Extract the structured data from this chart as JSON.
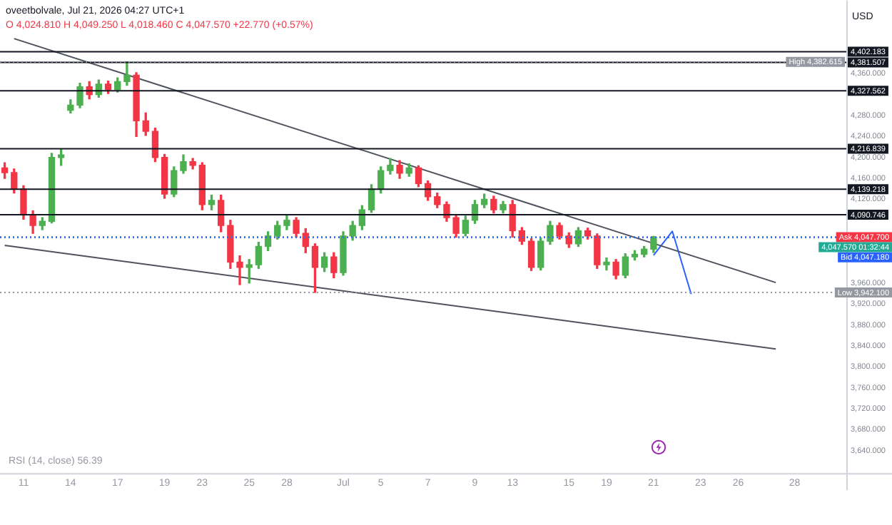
{
  "chart_data": {
    "type": "candlestick",
    "ylabel": "USD",
    "annotations": [
      "oveetbolvale, Jul 21, 2026 04:27 UTC+1",
      "O 4,024.810 H 4,049.250 L 4,018.460 C 4,047.570 +22.770 (+0.57%)",
      "RSI (14, close) 56.39"
    ],
    "categories": [
      null,
      null,
      "11",
      null,
      null,
      null,
      null,
      "14",
      null,
      null,
      null,
      null,
      "17",
      null,
      null,
      null,
      null,
      "19",
      null,
      null,
      null,
      "23",
      null,
      null,
      null,
      null,
      "25",
      null,
      null,
      null,
      "28",
      null,
      null,
      null,
      null,
      null,
      "Jul",
      null,
      null,
      null,
      "5",
      null,
      null,
      null,
      null,
      "7",
      null,
      null,
      null,
      null,
      "9",
      null,
      null,
      null,
      "13",
      null,
      null,
      null,
      null,
      null,
      "15",
      null,
      null,
      null,
      "19",
      null,
      null,
      null,
      null,
      "21",
      null,
      null,
      null,
      null,
      "23",
      null,
      null,
      null,
      "26",
      null,
      null,
      null,
      null,
      null,
      "28",
      null,
      null,
      null,
      null,
      null
    ],
    "ohlc": [
      [
        4180,
        4190,
        4160,
        4171
      ],
      [
        4171,
        4178,
        4132,
        4140
      ],
      [
        4140,
        4146,
        4082,
        4090
      ],
      [
        4090,
        4098,
        4055,
        4070
      ],
      [
        4070,
        4085,
        4062,
        4078
      ],
      [
        4078,
        4208,
        4075,
        4200
      ],
      [
        4200,
        4215,
        4185,
        4205
      ],
      [
        4290,
        4310,
        4285,
        4300
      ],
      [
        4300,
        4342,
        4295,
        4335
      ],
      [
        4335,
        4345,
        4312,
        4320
      ],
      [
        4320,
        4348,
        4315,
        4340
      ],
      [
        4340,
        4346,
        4322,
        4330
      ],
      [
        4330,
        4352,
        4325,
        4345
      ],
      [
        4345,
        4382.615,
        4338,
        4357
      ],
      [
        4357,
        4362,
        4240,
        4270
      ],
      [
        4270,
        4285,
        4242,
        4250
      ],
      [
        4250,
        4256,
        4192,
        4200
      ],
      [
        4200,
        4206,
        4122,
        4130
      ],
      [
        4130,
        4182,
        4125,
        4175
      ],
      [
        4175,
        4205,
        4170,
        4192
      ],
      [
        4192,
        4198,
        4178,
        4185
      ],
      [
        4185,
        4190,
        4100,
        4110
      ],
      [
        4110,
        4128,
        4100,
        4118
      ],
      [
        4118,
        4128,
        4058,
        4070
      ],
      [
        4070,
        4080,
        3988,
        4000
      ],
      [
        4000,
        4012,
        3957,
        3990
      ],
      [
        3990,
        4005,
        3960,
        3995
      ],
      [
        3995,
        4038,
        3988,
        4030
      ],
      [
        4030,
        4058,
        4022,
        4050
      ],
      [
        4050,
        4078,
        4044,
        4070
      ],
      [
        4070,
        4090,
        4062,
        4080
      ],
      [
        4080,
        4085,
        4048,
        4055
      ],
      [
        4055,
        4064,
        4018,
        4030
      ],
      [
        4030,
        4035,
        3942.1,
        3990
      ],
      [
        3990,
        4018,
        3982,
        4010
      ],
      [
        4010,
        4018,
        3970,
        3980
      ],
      [
        3980,
        4058,
        3975,
        4050
      ],
      [
        4050,
        4078,
        4042,
        4070
      ],
      [
        4070,
        4108,
        4062,
        4100
      ],
      [
        4100,
        4148,
        4095,
        4140
      ],
      [
        4140,
        4182,
        4132,
        4175
      ],
      [
        4175,
        4198,
        4168,
        4185
      ],
      [
        4185,
        4194,
        4160,
        4170
      ],
      [
        4170,
        4188,
        4164,
        4180
      ],
      [
        4180,
        4184,
        4144,
        4150
      ],
      [
        4150,
        4155,
        4118,
        4125
      ],
      [
        4125,
        4132,
        4104,
        4110
      ],
      [
        4110,
        4115,
        4078,
        4085
      ],
      [
        4085,
        4090,
        4048,
        4055
      ],
      [
        4055,
        4088,
        4050,
        4080
      ],
      [
        4080,
        4118,
        4074,
        4110
      ],
      [
        4110,
        4130,
        4104,
        4120
      ],
      [
        4120,
        4126,
        4094,
        4100
      ],
      [
        4100,
        4116,
        4094,
        4110
      ],
      [
        4110,
        4118,
        4048,
        4060
      ],
      [
        4060,
        4066,
        4034,
        4040
      ],
      [
        4040,
        4045,
        3984,
        3990
      ],
      [
        3990,
        4046,
        3985,
        4040
      ],
      [
        4040,
        4078,
        4034,
        4070
      ],
      [
        4070,
        4075,
        4044,
        4050
      ],
      [
        4050,
        4056,
        4028,
        4035
      ],
      [
        4035,
        4066,
        4030,
        4060
      ],
      [
        4060,
        4065,
        4044,
        4050
      ],
      [
        4050,
        4054,
        3988,
        3995
      ],
      [
        3995,
        4008,
        3985,
        4000
      ],
      [
        4000,
        4005,
        3968,
        3975
      ],
      [
        3975,
        4016,
        3970,
        4010
      ],
      [
        4010,
        4022,
        4004,
        4015
      ],
      [
        4015,
        4030,
        4010,
        4024.81
      ],
      [
        4024.81,
        4049.25,
        4018.46,
        4047.57
      ],
      null,
      null,
      null,
      null,
      null,
      null,
      null,
      null,
      null,
      null,
      null,
      null,
      null,
      null,
      null,
      null,
      null,
      null,
      null,
      null
    ],
    "colors": [
      "#f23645",
      "#f23645",
      "#f23645",
      "#f23645",
      "#4caf50",
      "#4caf50",
      "#4caf50",
      "#4caf50",
      "#4caf50",
      "#f23645",
      "#4caf50",
      "#f23645",
      "#4caf50",
      "#4caf50",
      "#f23645",
      "#f23645",
      "#f23645",
      "#f23645",
      "#4caf50",
      "#4caf50",
      "#f23645",
      "#f23645",
      "#4caf50",
      "#f23645",
      "#f23645",
      "#f23645",
      "#4caf50",
      "#4caf50",
      "#4caf50",
      "#4caf50",
      "#4caf50",
      "#f23645",
      "#f23645",
      "#f23645",
      "#4caf50",
      "#f23645",
      "#4caf50",
      "#4caf50",
      "#4caf50",
      "#4caf50",
      "#4caf50",
      "#4caf50",
      "#f23645",
      "#4caf50",
      "#f23645",
      "#f23645",
      "#f23645",
      "#f23645",
      "#f23645",
      "#4caf50",
      "#4caf50",
      "#4caf50",
      "#f23645",
      "#4caf50",
      "#f23645",
      "#f23645",
      "#f23645",
      "#4caf50",
      "#4caf50",
      "#f23645",
      "#f23645",
      "#4caf50",
      "#f23645",
      "#f23645",
      "#4caf50",
      "#f23645",
      "#4caf50",
      "#4caf50",
      "#4caf50",
      "#4caf50",
      null,
      null,
      null,
      null,
      null,
      null,
      null,
      null,
      null,
      null,
      null,
      null,
      null,
      null,
      null,
      null,
      null,
      null,
      null,
      null
    ],
    "series": [
      {
        "type": "line",
        "color": "#50535e",
        "values": [
          null,
          4427,
          null,
          null,
          null,
          null,
          null,
          null,
          null,
          null,
          null,
          null,
          null,
          null,
          null,
          null,
          null,
          null,
          null,
          null,
          null,
          null,
          null,
          null,
          null,
          null,
          null,
          null,
          null,
          null,
          null,
          null,
          null,
          null,
          null,
          null,
          null,
          null,
          null,
          null,
          null,
          null,
          null,
          null,
          null,
          null,
          null,
          null,
          null,
          null,
          null,
          null,
          null,
          null,
          null,
          null,
          null,
          null,
          null,
          null,
          null,
          null,
          null,
          null,
          null,
          null,
          null,
          null,
          null,
          null,
          null,
          null,
          null,
          null,
          null,
          null,
          null,
          null,
          null,
          null,
          null,
          null,
          3961,
          null,
          null,
          null,
          null,
          null,
          null,
          null
        ]
      },
      {
        "type": "line",
        "color": "#50535e",
        "values": [
          4032,
          null,
          null,
          null,
          null,
          null,
          null,
          null,
          null,
          null,
          null,
          null,
          null,
          null,
          null,
          null,
          null,
          null,
          null,
          null,
          null,
          null,
          null,
          null,
          null,
          null,
          null,
          null,
          null,
          null,
          null,
          null,
          null,
          null,
          null,
          null,
          null,
          null,
          null,
          null,
          null,
          null,
          null,
          null,
          null,
          null,
          null,
          null,
          null,
          null,
          null,
          null,
          null,
          null,
          null,
          null,
          null,
          null,
          null,
          null,
          null,
          null,
          null,
          null,
          null,
          null,
          null,
          null,
          null,
          null,
          null,
          null,
          null,
          null,
          null,
          null,
          null,
          null,
          null,
          null,
          null,
          null,
          3834,
          null,
          null,
          null,
          null,
          null,
          null,
          null
        ]
      },
      {
        "type": "line",
        "color": "#2962ff",
        "values": [
          null,
          null,
          null,
          null,
          null,
          null,
          null,
          null,
          null,
          null,
          null,
          null,
          null,
          null,
          null,
          null,
          null,
          null,
          null,
          null,
          null,
          null,
          null,
          null,
          null,
          null,
          null,
          null,
          null,
          null,
          null,
          null,
          null,
          null,
          null,
          null,
          null,
          null,
          null,
          null,
          null,
          null,
          null,
          null,
          null,
          null,
          null,
          null,
          null,
          null,
          null,
          null,
          null,
          null,
          null,
          null,
          null,
          null,
          null,
          null,
          null,
          null,
          null,
          null,
          null,
          null,
          null,
          null,
          null,
          4013,
          null,
          4059,
          null,
          3939,
          null,
          null,
          null,
          null,
          null,
          null,
          null,
          null,
          null,
          null,
          null,
          null,
          null,
          null,
          null,
          null
        ]
      }
    ],
    "ylim": [
      3597,
      4500
    ],
    "yticks": [
      {
        "value": 3640,
        "label": "3,640.000"
      },
      {
        "value": 3680,
        "label": "3,680.000"
      },
      {
        "value": 3720,
        "label": "3,720.000"
      },
      {
        "value": 3760,
        "label": "3,760.000"
      },
      {
        "value": 3800,
        "label": "3,800.000"
      },
      {
        "value": 3840,
        "label": "3,840.000"
      },
      {
        "value": 3880,
        "label": "3,880.000"
      },
      {
        "value": 3920,
        "label": "3,920.000"
      },
      {
        "value": 3960,
        "label": "3,960.000"
      },
      {
        "value": 4120,
        "label": "4,120.000"
      },
      {
        "value": 4160,
        "label": "4,160.000"
      },
      {
        "value": 4200,
        "label": "4,200.000"
      },
      {
        "value": 4240,
        "label": "4,240.000"
      },
      {
        "value": 4280,
        "label": "4,280.000"
      },
      {
        "value": 4360,
        "label": "4,360.000"
      }
    ],
    "ref_lines": [
      {
        "axis": "y",
        "value": 4402.183,
        "label": "4,402.183",
        "color": "#131722",
        "line_style": "solid"
      },
      {
        "axis": "y",
        "value": 4381.507,
        "label": "4,381.507",
        "color": "#131722",
        "line_style": "solid"
      },
      {
        "axis": "y",
        "value": 4382.615,
        "label": "High 4,382.615",
        "color": "#9598a1",
        "line_style": "dotted"
      },
      {
        "axis": "y",
        "value": 4327.562,
        "label": "4,327.562",
        "color": "#131722",
        "line_style": "solid"
      },
      {
        "axis": "y",
        "value": 4216.839,
        "label": "4,216.839",
        "color": "#131722",
        "line_style": "solid"
      },
      {
        "axis": "y",
        "value": 4139.218,
        "label": "4,139.218",
        "color": "#131722",
        "line_style": "solid"
      },
      {
        "axis": "y",
        "value": 4090.746,
        "label": "4,090.746",
        "color": "#131722",
        "line_style": "solid"
      },
      {
        "axis": "y",
        "value": 4047.7,
        "label": "Ask 4,047.700",
        "color": "#f23645",
        "line_style": "dotted"
      },
      {
        "axis": "y",
        "value": 4047.57,
        "label": "4,047.570 01:32:44",
        "color": "#22ab94",
        "line_style": "dotted"
      },
      {
        "axis": "y",
        "value": 4047.18,
        "label": "Bid 4,047.180",
        "color": "#2962ff",
        "line_style": "dotted"
      },
      {
        "axis": "y",
        "value": 3942.1,
        "label": "Low 3,942.100",
        "color": "#9598a1",
        "line_style": "dotted"
      }
    ],
    "grid": false,
    "legend": false
  }
}
